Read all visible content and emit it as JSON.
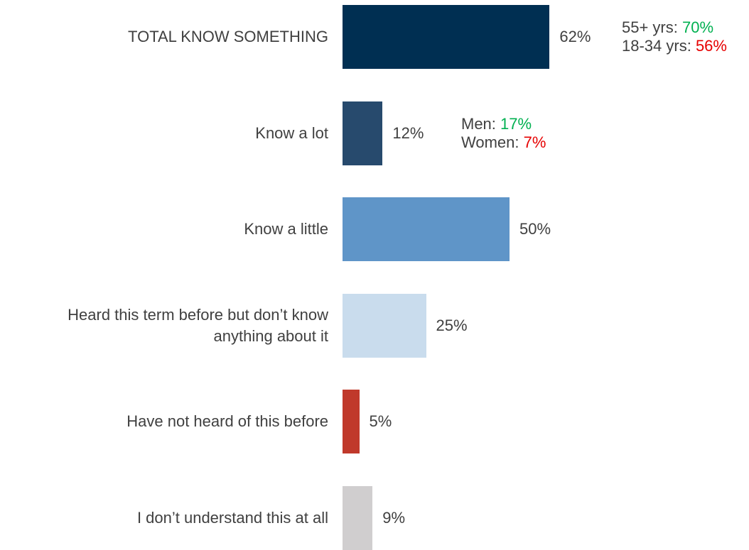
{
  "chart_data": {
    "type": "bar",
    "orientation": "horizontal",
    "categories": [
      "TOTAL KNOW SOMETHING",
      "Know a lot",
      "Know a little",
      "Heard this term before but don’t know anything about it",
      "Have not heard of this before",
      "I don’t understand this at all"
    ],
    "category_lines": [
      [
        "TOTAL KNOW SOMETHING"
      ],
      [
        "Know a lot"
      ],
      [
        "Know a little"
      ],
      [
        "Heard this term before but don’t know",
        "anything about it"
      ],
      [
        "Have not heard of this before"
      ],
      [
        "I don’t understand this at all"
      ]
    ],
    "values": [
      62,
      12,
      50,
      25,
      5,
      9
    ],
    "value_labels": [
      "62%",
      "12%",
      "50%",
      "25%",
      "5%",
      "9%"
    ],
    "colors": [
      "#002f52",
      "#274a6d",
      "#5f95c8",
      "#c9dced",
      "#c0392b",
      "#d0cecf"
    ],
    "xlim": [
      0,
      100
    ],
    "grid": false,
    "legend": "none",
    "annotations": [
      {
        "category": "TOTAL KNOW SOMETHING",
        "lines": [
          {
            "label": "55+ yrs: ",
            "value": "70%",
            "tone": "positive"
          },
          {
            "label": "18-34 yrs: ",
            "value": "56%",
            "tone": "negative"
          }
        ]
      },
      {
        "category": "Know a lot",
        "lines": [
          {
            "label": "Men: ",
            "value": "17%",
            "tone": "positive"
          },
          {
            "label": "Women: ",
            "value": "7%",
            "tone": "negative"
          }
        ]
      }
    ],
    "tone_colors": {
      "positive": "#00b050",
      "negative": "#e60000"
    }
  }
}
